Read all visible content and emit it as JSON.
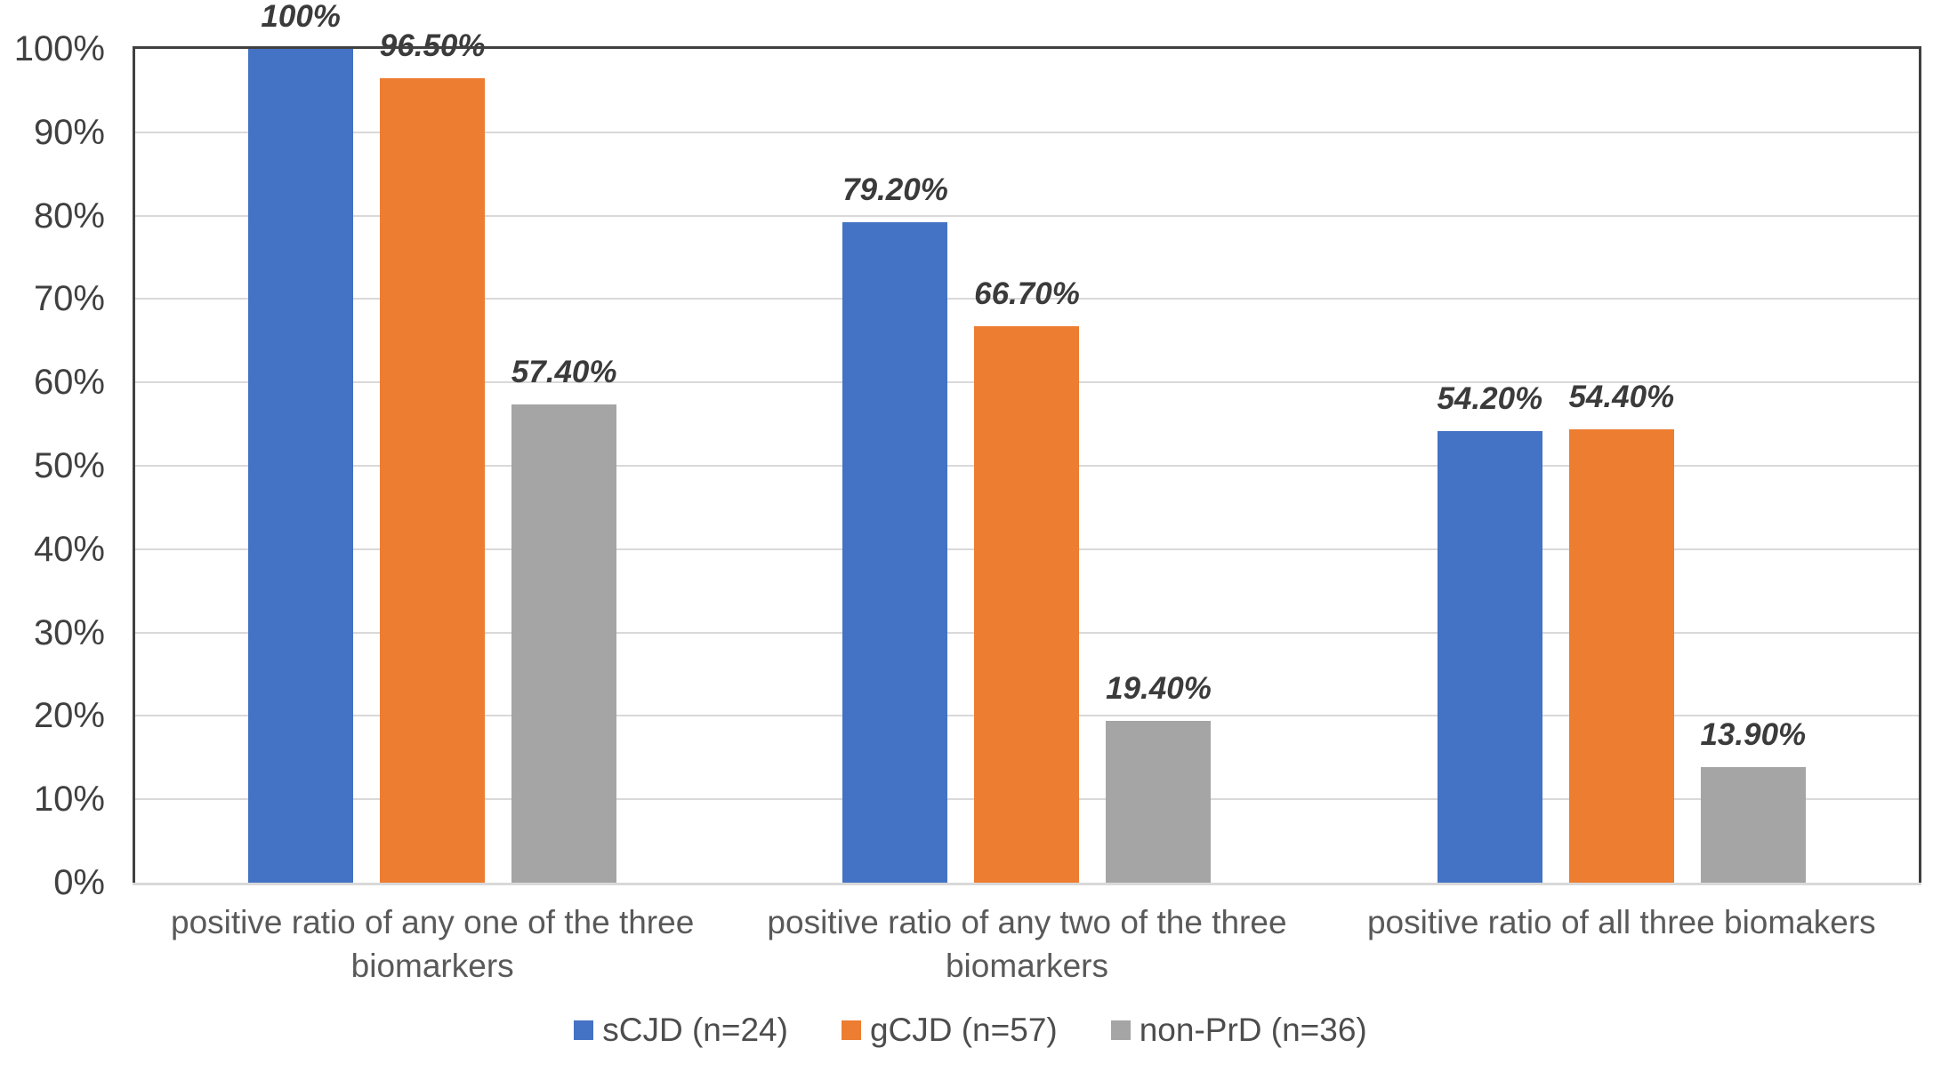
{
  "chart_data": {
    "type": "bar",
    "title": "",
    "xlabel": "",
    "ylabel": "",
    "categories": [
      "positive ratio of any one of the three biomarkers",
      "positive ratio of any two of the three biomarkers",
      "positive ratio of all three biomakers"
    ],
    "series": [
      {
        "name": "sCJD (n=24)",
        "color": "#4472C4",
        "values": [
          100,
          79.2,
          54.2
        ],
        "labels": [
          "100%",
          "79.20%",
          "54.20%"
        ]
      },
      {
        "name": "gCJD (n=57)",
        "color": "#ED7D31",
        "values": [
          96.5,
          66.7,
          54.4
        ],
        "labels": [
          "96.50%",
          "66.70%",
          "54.40%"
        ]
      },
      {
        "name": "non-PrD (n=36)",
        "color": "#A5A5A5",
        "values": [
          57.4,
          19.4,
          13.9
        ],
        "labels": [
          "57.40%",
          "19.40%",
          "13.90%"
        ]
      }
    ],
    "ylim": [
      0,
      100
    ],
    "yticks": [
      "0%",
      "10%",
      "20%",
      "30%",
      "40%",
      "50%",
      "60%",
      "70%",
      "80%",
      "90%",
      "100%"
    ],
    "grid": true,
    "legend_position": "bottom",
    "palette": {
      "axis_border": "#404040",
      "gridline": "#D9D9D9",
      "tick_text": "#404040",
      "category_text": "#595959",
      "data_label_text": "#3B3B3B",
      "legend_text": "#4D4D4D",
      "background": "#FFFFFF"
    }
  }
}
